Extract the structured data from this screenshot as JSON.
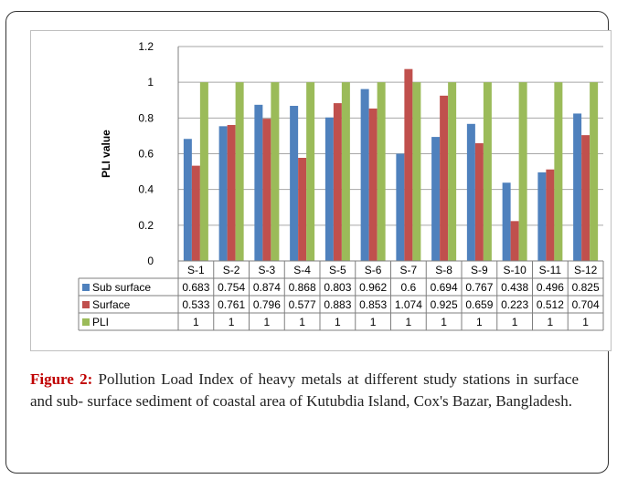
{
  "caption": {
    "label": "Figure 2:",
    "text": " Pollution Load Index of heavy metals at different study stations in surface and sub- surface sediment of coastal area of Kutubdia Island, Cox's Bazar, Bangladesh."
  },
  "chart_data": {
    "type": "bar",
    "ylabel": "PLI value",
    "ylim": [
      0,
      1.2
    ],
    "yticks": [
      "0",
      "0.2",
      "0.4",
      "0.6",
      "0.8",
      "1",
      "1.2"
    ],
    "grid": true,
    "legend": "data-table",
    "categories": [
      "S-1",
      "S-2",
      "S-3",
      "S-4",
      "S-5",
      "S-6",
      "S-7",
      "S-8",
      "S-9",
      "S-10",
      "S-11",
      "S-12"
    ],
    "series": [
      {
        "name": "Sub surface",
        "color": "#4f81bd",
        "values": [
          0.683,
          0.754,
          0.874,
          0.868,
          0.803,
          0.962,
          0.6,
          0.694,
          0.767,
          0.438,
          0.496,
          0.825
        ]
      },
      {
        "name": "Surface",
        "color": "#c0504d",
        "values": [
          0.533,
          0.761,
          0.796,
          0.577,
          0.883,
          0.853,
          1.074,
          0.925,
          0.659,
          0.223,
          0.512,
          0.704
        ]
      },
      {
        "name": "PLI",
        "color": "#9bbb59",
        "values": [
          1,
          1,
          1,
          1,
          1,
          1,
          1,
          1,
          1,
          1,
          1,
          1
        ]
      }
    ]
  }
}
